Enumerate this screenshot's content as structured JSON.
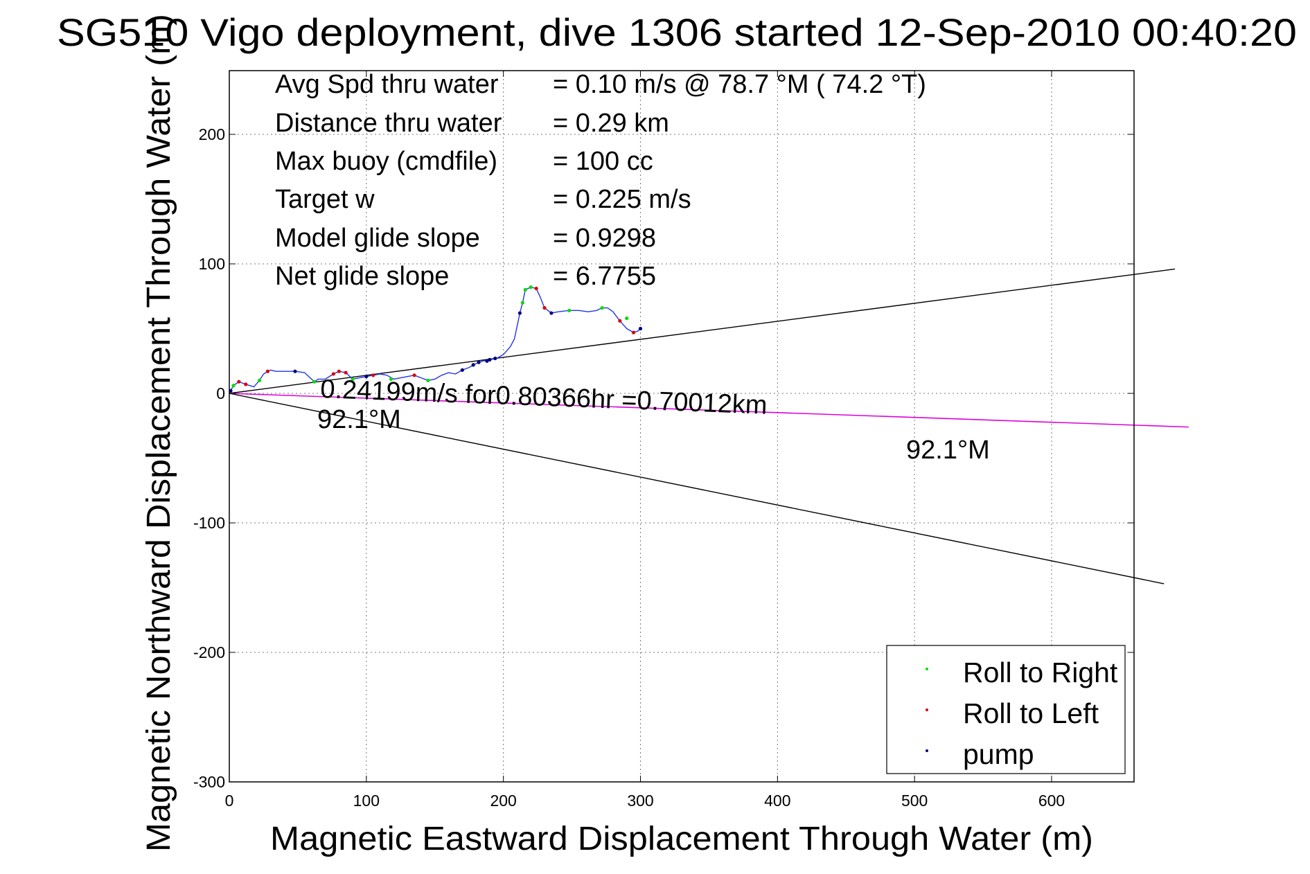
{
  "chart_data": {
    "type": "line",
    "title": "SG510 Vigo deployment, dive 1306 started 12-Sep-2010 00:40:20",
    "xlabel": "Magnetic Eastward Displacement Through Water (m)",
    "ylabel": "Magnetic Northward Displacement Through Water (m)",
    "xlim": [
      0,
      700
    ],
    "ylim": [
      -300,
      250
    ],
    "xticks": [
      0,
      100,
      200,
      300,
      400,
      500,
      600
    ],
    "yticks": [
      -300,
      -200,
      -100,
      0,
      100,
      200
    ],
    "xtick_labels": [
      "0",
      "100",
      "200",
      "300",
      "400",
      "500",
      "600"
    ],
    "ytick_labels": [
      "-300",
      "-200",
      "-100",
      "0",
      "100",
      "200"
    ],
    "grid": true,
    "legend_position": "bottom-right",
    "info_lines": [
      {
        "label": "Avg Spd thru water",
        "value": "=  0.10 m/s @  78.7 °M ( 74.2 °T)"
      },
      {
        "label": "Distance thru water",
        "value": "=  0.29 km"
      },
      {
        "label": "Max buoy (cmdfile)",
        "value": "= 100 cc"
      },
      {
        "label": "Target w",
        "value": "= 0.225 m/s"
      },
      {
        "label": "Model glide slope",
        "value": "= 0.9298"
      },
      {
        "label": "Net glide slope",
        "value": "= 6.7755"
      }
    ],
    "annotations": {
      "current": "0.24199m/s for0.80366hr =0.70012km",
      "heading_near": "92.1°M",
      "heading_far": "92.1°M"
    },
    "reference_lines": [
      {
        "x": [
          0,
          690
        ],
        "y": [
          0,
          96
        ]
      },
      {
        "x": [
          0,
          682
        ],
        "y": [
          0,
          -147
        ]
      },
      {
        "x": [
          0,
          700
        ],
        "y": [
          0,
          -26
        ]
      }
    ],
    "track": {
      "x": [
        0,
        3,
        7,
        12,
        18,
        22,
        25,
        30,
        34,
        40,
        48,
        55,
        60,
        62,
        65,
        70,
        76,
        80,
        85,
        90,
        95,
        100,
        105,
        110,
        115,
        120,
        125,
        130,
        135,
        140,
        145,
        150,
        155,
        160,
        165,
        170,
        175,
        180,
        185,
        190,
        195,
        200,
        205,
        208,
        210,
        212,
        214,
        215,
        216,
        220,
        224,
        227,
        230,
        235,
        240,
        248,
        255,
        262,
        268,
        272,
        276,
        280,
        285,
        290,
        295,
        298,
        300
      ],
      "y": [
        0,
        6,
        9,
        7,
        5,
        10,
        15,
        18,
        17,
        17,
        17,
        16,
        11,
        9,
        11,
        11,
        15,
        17,
        16,
        11,
        12,
        13,
        14,
        15,
        14,
        11,
        12,
        13,
        14,
        12,
        10,
        11,
        14,
        16,
        15,
        18,
        20,
        23,
        25,
        26,
        27,
        30,
        36,
        42,
        52,
        62,
        70,
        75,
        80,
        82,
        81,
        74,
        66,
        62,
        63,
        64,
        64,
        63,
        64,
        66,
        66,
        63,
        56,
        50,
        47,
        48,
        50
      ]
    },
    "series": [
      {
        "name": "Roll to Right",
        "color": "#00dd00",
        "x": [
          3,
          22,
          62,
          90,
          118,
          145,
          214,
          216,
          220,
          248,
          272,
          290
        ],
        "y": [
          6,
          10,
          9,
          11,
          11,
          10,
          70,
          80,
          82,
          64,
          66,
          58
        ]
      },
      {
        "name": "Roll to Left",
        "color": "#dd0000",
        "x": [
          7,
          12,
          28,
          76,
          80,
          85,
          105,
          135,
          224,
          230,
          285,
          295
        ],
        "y": [
          9,
          7,
          17,
          15,
          17,
          16,
          14,
          14,
          81,
          66,
          56,
          47
        ]
      },
      {
        "name": "pump",
        "color": "#00007a",
        "x": [
          1,
          48,
          100,
          170,
          178,
          182,
          188,
          190,
          194,
          212,
          235,
          300
        ],
        "y": [
          2,
          17,
          13,
          18,
          22,
          24,
          25,
          26,
          27,
          62,
          62,
          50
        ]
      }
    ],
    "colors": {
      "track": "#2233ee",
      "current_line": "#dd00dd",
      "reference": "#000000"
    }
  }
}
